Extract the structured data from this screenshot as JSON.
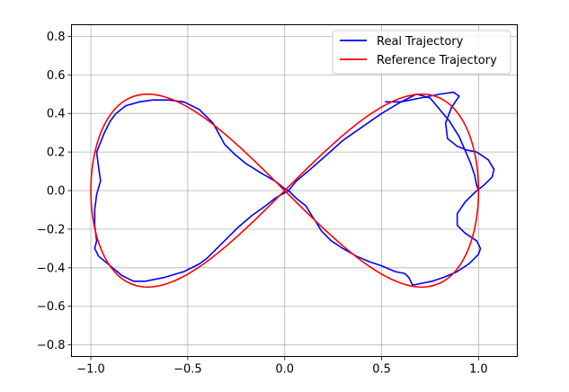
{
  "chart_data": {
    "type": "line",
    "title": "",
    "xlabel": "",
    "ylabel": "",
    "xlim": [
      -1.1,
      1.2
    ],
    "ylim": [
      -0.86,
      0.86
    ],
    "xticks": [
      -1.0,
      -0.5,
      0.0,
      0.5,
      1.0
    ],
    "xtick_labels": [
      "−1.0",
      "−0.5",
      "0.0",
      "0.5",
      "1.0"
    ],
    "yticks": [
      -0.8,
      -0.6,
      -0.4,
      -0.2,
      0.0,
      0.2,
      0.4,
      0.6,
      0.8
    ],
    "ytick_labels": [
      "−0.8",
      "−0.6",
      "−0.4",
      "−0.2",
      "0.0",
      "0.2",
      "0.4",
      "0.6",
      "0.8"
    ],
    "grid": true,
    "legend_position": "top-right",
    "series": [
      {
        "name": "Real Trajectory",
        "color": "#0000ff",
        "x": [
          0.52,
          0.6,
          0.7,
          0.8,
          0.87,
          0.9,
          0.86,
          0.83,
          0.84,
          0.89,
          0.94,
          0.99,
          1.05,
          1.08,
          1.07,
          1.03,
          0.98,
          0.93,
          0.89,
          0.89,
          0.93,
          0.99,
          1.01,
          1.0,
          0.95,
          0.89,
          0.82,
          0.76,
          0.71,
          0.66,
          0.65,
          0.64,
          0.62,
          0.57,
          0.5,
          0.44,
          0.37,
          0.3,
          0.24,
          0.19,
          0.16,
          0.14,
          0.11,
          0.06,
          0.02,
          0.0,
          -0.05,
          -0.12,
          -0.2,
          -0.26,
          -0.31,
          -0.37,
          -0.44,
          -0.52,
          -0.6,
          -0.68,
          -0.75,
          -0.82,
          -0.87,
          -0.9,
          -0.93,
          -0.95,
          -0.97,
          -0.96,
          -0.95,
          -0.97,
          -0.98,
          -0.98,
          -0.97,
          -0.98,
          -0.96,
          -0.9,
          -0.84,
          -0.8,
          -0.78,
          -0.72,
          -0.62,
          -0.52,
          -0.44,
          -0.4,
          -0.38,
          -0.35,
          -0.3,
          -0.24,
          -0.17,
          -0.1,
          -0.05,
          0.02,
          0.06,
          0.12,
          0.2,
          0.3,
          0.4,
          0.5,
          0.6,
          0.68,
          0.75,
          0.8,
          0.85,
          0.9,
          0.93,
          0.96,
          0.98,
          0.99,
          1.0
        ],
        "y": [
          0.46,
          0.46,
          0.48,
          0.5,
          0.51,
          0.49,
          0.43,
          0.35,
          0.27,
          0.23,
          0.21,
          0.2,
          0.16,
          0.11,
          0.07,
          0.03,
          -0.01,
          -0.06,
          -0.12,
          -0.18,
          -0.22,
          -0.26,
          -0.3,
          -0.33,
          -0.38,
          -0.42,
          -0.45,
          -0.47,
          -0.48,
          -0.49,
          -0.47,
          -0.45,
          -0.43,
          -0.42,
          -0.39,
          -0.37,
          -0.34,
          -0.3,
          -0.26,
          -0.21,
          -0.16,
          -0.13,
          -0.08,
          -0.04,
          0.0,
          0.01,
          0.05,
          0.09,
          0.14,
          0.19,
          0.24,
          0.35,
          0.42,
          0.46,
          0.47,
          0.47,
          0.46,
          0.44,
          0.4,
          0.36,
          0.3,
          0.25,
          0.2,
          0.12,
          0.05,
          -0.02,
          -0.1,
          -0.18,
          -0.26,
          -0.3,
          -0.34,
          -0.39,
          -0.44,
          -0.46,
          -0.47,
          -0.47,
          -0.45,
          -0.42,
          -0.38,
          -0.35,
          -0.33,
          -0.3,
          -0.25,
          -0.19,
          -0.13,
          -0.08,
          -0.04,
          0.0,
          0.05,
          0.1,
          0.17,
          0.26,
          0.33,
          0.4,
          0.46,
          0.5,
          0.48,
          0.42,
          0.36,
          0.28,
          0.21,
          0.14,
          0.08,
          0.03,
          0.0
        ]
      },
      {
        "name": "Reference Trajectory",
        "color": "#ff0000",
        "parametric": "lemniscate",
        "samples": 240
      }
    ]
  },
  "legend": {
    "entries": [
      "Real Trajectory",
      "Reference Trajectory"
    ]
  }
}
